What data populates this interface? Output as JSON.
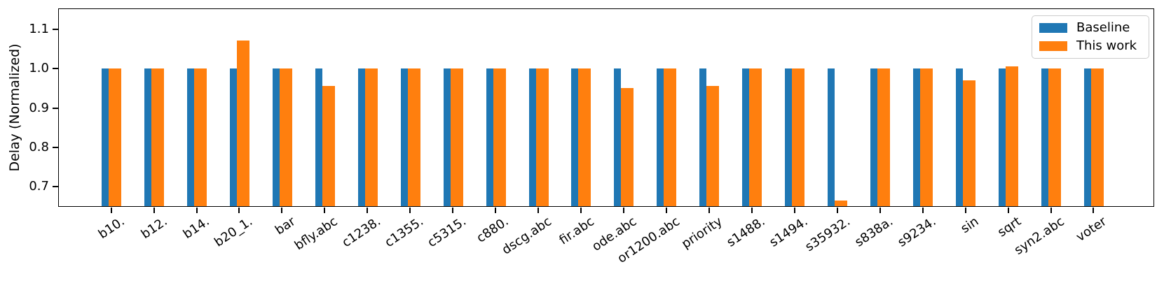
{
  "chart_data": {
    "type": "bar",
    "title": "",
    "xlabel": "",
    "ylabel": "Delay (Normalized)",
    "categories": [
      "b10.",
      "b12.",
      "b14.",
      "b20_1.",
      "bar",
      "bfly.abc",
      "c1238.",
      "c1355.",
      "c5315.",
      "c880.",
      "dscg.abc",
      "fir.abc",
      "ode.abc",
      "or1200.abc",
      "priority",
      "s1488.",
      "s1494.",
      "s35932.",
      "s838a.",
      "s9234.",
      "sin",
      "sqrt",
      "syn2.abc",
      "voter"
    ],
    "series": [
      {
        "name": "Baseline",
        "color": "#1f77b4",
        "values": [
          1.0,
          1.0,
          1.0,
          1.0,
          1.0,
          1.0,
          1.0,
          1.0,
          1.0,
          1.0,
          1.0,
          1.0,
          1.0,
          1.0,
          1.0,
          1.0,
          1.0,
          1.0,
          1.0,
          1.0,
          1.0,
          1.0,
          1.0,
          1.0
        ]
      },
      {
        "name": "This work",
        "color": "#ff7f0e",
        "values": [
          1.0,
          1.0,
          1.0,
          1.07,
          1.0,
          0.955,
          1.0,
          1.0,
          1.0,
          1.0,
          1.0,
          1.0,
          0.95,
          1.0,
          0.955,
          1.0,
          1.0,
          0.665,
          1.0,
          1.0,
          0.97,
          1.005,
          1.0,
          1.0
        ]
      }
    ],
    "ylim": [
      0.65,
      1.15
    ],
    "yticks": [
      0.7,
      0.8,
      0.9,
      1.0,
      1.1
    ],
    "legend_position": "upper right",
    "grid": false
  }
}
